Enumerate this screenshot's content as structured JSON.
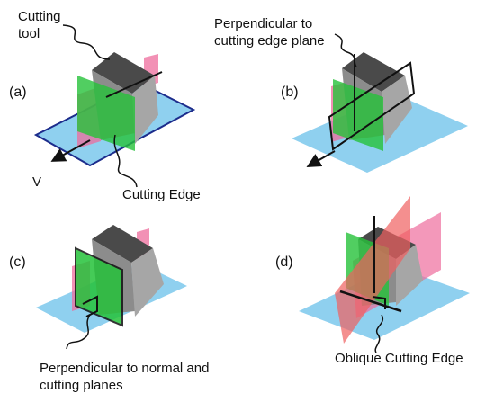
{
  "colors": {
    "base_plane": "#8fd0ef",
    "tool_top": "#4a4a4a",
    "tool_side": "#8c8c8c",
    "tool_front": "#a6a6a6",
    "green_plane": "#25c23a",
    "pink_plane": "#ee6c9c",
    "red_plane": "#ef5f5f",
    "edge_line": "#111111"
  },
  "panels": [
    {
      "label": "(a)",
      "annotations": [
        "Cutting",
        "tool",
        "Cutting Edge",
        "V"
      ]
    },
    {
      "label": "(b)",
      "annotations": [
        "Perpendicular to",
        "cutting edge plane"
      ]
    },
    {
      "label": "(c)",
      "annotations": [
        "Perpendicular to normal and",
        "cutting planes"
      ]
    },
    {
      "label": "(d)",
      "annotations": [
        "Oblique Cutting Edge"
      ]
    }
  ]
}
